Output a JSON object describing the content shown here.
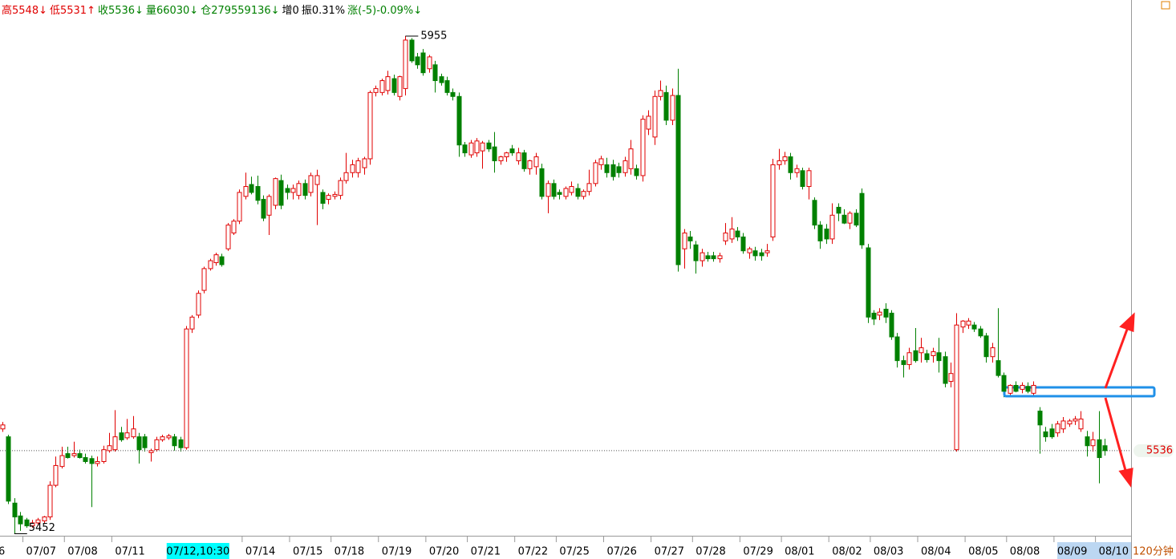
{
  "header": {
    "items": [
      {
        "text": "高5548↓",
        "color": "#e00000"
      },
      {
        "text": "低5531↑",
        "color": "#e00000"
      },
      {
        "text": "收5536↓",
        "color": "#008000"
      },
      {
        "text": "量66030↓",
        "color": "#008000"
      },
      {
        "text": "仓279559136↓",
        "color": "#008000"
      },
      {
        "text": "增0",
        "color": "#000000"
      },
      {
        "text": "振0.31%",
        "color": "#000000"
      },
      {
        "text": "涨(-5)-0.09%↓",
        "color": "#008000"
      }
    ]
  },
  "chart_data": {
    "type": "candlestick",
    "ylim": [
      5450,
      5991.5
    ],
    "up_color": "#e00000",
    "down_color": "#008000",
    "period": "120分钟",
    "last_price": 5536,
    "max_label": 5955,
    "min_label": 5452,
    "highlight": 33,
    "categories": [
      "6",
      null,
      null,
      null,
      "07/07",
      null,
      null,
      null,
      null,
      null,
      null,
      "07/08",
      null,
      null,
      null,
      null,
      null,
      null,
      null,
      "07/11",
      null,
      null,
      null,
      null,
      null,
      null,
      null,
      null,
      null,
      null,
      null,
      null,
      null,
      "07/12,10:30",
      null,
      null,
      null,
      null,
      null,
      null,
      null,
      "07/14",
      null,
      null,
      null,
      null,
      null,
      null,
      null,
      "07/15",
      null,
      null,
      null,
      null,
      null,
      null,
      "07/18",
      null,
      null,
      null,
      null,
      null,
      null,
      null,
      "07/19",
      null,
      null,
      null,
      null,
      null,
      null,
      null,
      "07/20",
      null,
      null,
      null,
      null,
      null,
      null,
      "07/21",
      null,
      null,
      null,
      null,
      null,
      null,
      null,
      "07/22",
      null,
      null,
      null,
      null,
      null,
      null,
      "07/25",
      null,
      null,
      null,
      null,
      null,
      null,
      null,
      "07/26",
      null,
      null,
      null,
      null,
      null,
      null,
      null,
      "07/27",
      null,
      null,
      null,
      null,
      null,
      null,
      "07/28",
      null,
      null,
      null,
      null,
      null,
      null,
      null,
      "07/29",
      null,
      null,
      null,
      null,
      null,
      null,
      "08/01",
      null,
      null,
      null,
      null,
      null,
      null,
      null,
      "08/02",
      null,
      null,
      null,
      null,
      null,
      null,
      "08/03",
      null,
      null,
      null,
      null,
      null,
      null,
      null,
      "08/04",
      null,
      null,
      null,
      null,
      null,
      null,
      null,
      "08/05",
      null,
      null,
      null,
      null,
      null,
      null,
      "08/08",
      null,
      null,
      null,
      null,
      null,
      null,
      null,
      "08/09",
      null,
      null,
      null,
      null,
      null,
      null,
      "08/10",
      null
    ],
    "candles": [
      [
        5558,
        5565,
        5555,
        5562
      ],
      [
        5550,
        5552,
        5482,
        5485
      ],
      [
        5483,
        5488,
        5452,
        5469
      ],
      [
        5470,
        5474,
        5455,
        5462
      ],
      [
        5466,
        5468,
        5458,
        5460
      ],
      [
        5460,
        5466,
        5458,
        5463
      ],
      [
        5463,
        5468,
        5460,
        5466
      ],
      [
        5465,
        5470,
        5462,
        5469
      ],
      [
        5469,
        5505,
        5466,
        5501
      ],
      [
        5501,
        5530,
        5499,
        5521
      ],
      [
        5520,
        5540,
        5518,
        5531
      ],
      [
        5533,
        5540,
        5528,
        5529
      ],
      [
        5531,
        5545,
        5529,
        5533
      ],
      [
        5533,
        5537,
        5528,
        5529
      ],
      [
        5529,
        5533,
        5523,
        5525
      ],
      [
        5528,
        5531,
        5479,
        5523
      ],
      [
        5523,
        5530,
        5520,
        5525
      ],
      [
        5525,
        5541,
        5523,
        5537
      ],
      [
        5536,
        5554,
        5534,
        5541
      ],
      [
        5537,
        5577,
        5535,
        5550
      ],
      [
        5554,
        5560,
        5545,
        5547
      ],
      [
        5549,
        5568,
        5547,
        5554
      ],
      [
        5550,
        5571,
        5548,
        5558
      ],
      [
        5550,
        5554,
        5523,
        5537
      ],
      [
        5550,
        5553,
        5535,
        5539
      ],
      [
        5534,
        5538,
        5525,
        5536
      ],
      [
        5537,
        5550,
        5535,
        5547
      ],
      [
        5547,
        5552,
        5545,
        5550
      ],
      [
        5549,
        5553,
        5547,
        5551
      ],
      [
        5550,
        5553,
        5536,
        5541
      ],
      [
        5547,
        5550,
        5535,
        5539
      ],
      [
        5539,
        5662,
        5537,
        5659
      ],
      [
        5659,
        5673,
        5655,
        5671
      ],
      [
        5673,
        5698,
        5670,
        5695
      ],
      [
        5698,
        5722,
        5695,
        5720
      ],
      [
        5720,
        5730,
        5718,
        5728
      ],
      [
        5726,
        5736,
        5723,
        5734
      ],
      [
        5732,
        5735,
        5722,
        5724
      ],
      [
        5740,
        5766,
        5738,
        5764
      ],
      [
        5756,
        5770,
        5754,
        5768
      ],
      [
        5768,
        5800,
        5765,
        5797
      ],
      [
        5793,
        5817,
        5790,
        5803
      ],
      [
        5805,
        5813,
        5795,
        5797
      ],
      [
        5803,
        5814,
        5785,
        5789
      ],
      [
        5790,
        5794,
        5768,
        5771
      ],
      [
        5774,
        5795,
        5754,
        5793
      ],
      [
        5784,
        5812,
        5780,
        5811
      ],
      [
        5809,
        5815,
        5780,
        5784
      ],
      [
        5801,
        5805,
        5790,
        5797
      ],
      [
        5797,
        5805,
        5790,
        5801
      ],
      [
        5794,
        5809,
        5790,
        5806
      ],
      [
        5806,
        5810,
        5790,
        5794
      ],
      [
        5797,
        5817,
        5793,
        5814
      ],
      [
        5805,
        5820,
        5764,
        5814
      ],
      [
        5797,
        5800,
        5780,
        5786
      ],
      [
        5790,
        5796,
        5785,
        5794
      ],
      [
        5793,
        5798,
        5790,
        5795
      ],
      [
        5794,
        5812,
        5790,
        5809
      ],
      [
        5809,
        5837,
        5806,
        5817
      ],
      [
        5817,
        5830,
        5812,
        5825
      ],
      [
        5817,
        5832,
        5812,
        5829
      ],
      [
        5822,
        5833,
        5815,
        5831
      ],
      [
        5831,
        5900,
        5825,
        5898
      ],
      [
        5898,
        5905,
        5894,
        5902
      ],
      [
        5898,
        5912,
        5895,
        5910
      ],
      [
        5900,
        5920,
        5896,
        5914
      ],
      [
        5912,
        5916,
        5895,
        5898
      ],
      [
        5894,
        5915,
        5890,
        5914
      ],
      [
        5902,
        5955,
        5895,
        5951
      ],
      [
        5951,
        5953,
        5928,
        5930
      ],
      [
        5934,
        5938,
        5922,
        5926
      ],
      [
        5938,
        5942,
        5915,
        5918
      ],
      [
        5922,
        5936,
        5918,
        5934
      ],
      [
        5926,
        5930,
        5898,
        5910
      ],
      [
        5914,
        5917,
        5905,
        5908
      ],
      [
        5910,
        5914,
        5895,
        5898
      ],
      [
        5898,
        5902,
        5890,
        5894
      ],
      [
        5894,
        5898,
        5833,
        5845
      ],
      [
        5845,
        5848,
        5833,
        5837
      ],
      [
        5835,
        5850,
        5832,
        5847
      ],
      [
        5837,
        5852,
        5833,
        5849
      ],
      [
        5839,
        5849,
        5821,
        5847
      ],
      [
        5847,
        5850,
        5838,
        5841
      ],
      [
        5843,
        5858,
        5817,
        5829
      ],
      [
        5829,
        5834,
        5825,
        5833
      ],
      [
        5833,
        5838,
        5828,
        5837
      ],
      [
        5841,
        5845,
        5834,
        5837
      ],
      [
        5829,
        5842,
        5825,
        5837
      ],
      [
        5837,
        5840,
        5818,
        5821
      ],
      [
        5821,
        5830,
        5815,
        5829
      ],
      [
        5823,
        5837,
        5815,
        5833
      ],
      [
        5821,
        5826,
        5790,
        5793
      ],
      [
        5793,
        5809,
        5776,
        5806
      ],
      [
        5806,
        5810,
        5790,
        5793
      ],
      [
        5797,
        5800,
        5790,
        5795
      ],
      [
        5793,
        5803,
        5790,
        5801
      ],
      [
        5797,
        5808,
        5794,
        5803
      ],
      [
        5801,
        5806,
        5790,
        5793
      ],
      [
        5793,
        5800,
        5790,
        5798
      ],
      [
        5798,
        5820,
        5794,
        5806
      ],
      [
        5806,
        5830,
        5803,
        5827
      ],
      [
        5825,
        5834,
        5820,
        5831
      ],
      [
        5825,
        5832,
        5812,
        5817
      ],
      [
        5825,
        5830,
        5809,
        5813
      ],
      [
        5823,
        5827,
        5812,
        5817
      ],
      [
        5817,
        5833,
        5813,
        5829
      ],
      [
        5821,
        5850,
        5815,
        5841
      ],
      [
        5821,
        5825,
        5810,
        5814
      ],
      [
        5814,
        5875,
        5808,
        5871
      ],
      [
        5861,
        5880,
        5855,
        5874
      ],
      [
        5853,
        5900,
        5845,
        5894
      ],
      [
        5894,
        5910,
        5890,
        5900
      ],
      [
        5898,
        5905,
        5865,
        5870
      ],
      [
        5870,
        5902,
        5865,
        5895
      ],
      [
        5895,
        5922,
        5717,
        5724
      ],
      [
        5740,
        5760,
        5720,
        5756
      ],
      [
        5752,
        5758,
        5740,
        5748
      ],
      [
        5744,
        5748,
        5715,
        5728
      ],
      [
        5728,
        5740,
        5722,
        5736
      ],
      [
        5733,
        5737,
        5727,
        5730
      ],
      [
        5733,
        5737,
        5727,
        5730
      ],
      [
        5730,
        5736,
        5726,
        5733
      ],
      [
        5748,
        5766,
        5744,
        5756
      ],
      [
        5750,
        5772,
        5746,
        5760
      ],
      [
        5758,
        5762,
        5748,
        5752
      ],
      [
        5752,
        5756,
        5735,
        5738
      ],
      [
        5736,
        5742,
        5730,
        5740
      ],
      [
        5738,
        5742,
        5728,
        5733
      ],
      [
        5736,
        5740,
        5728,
        5733
      ],
      [
        5736,
        5745,
        5732,
        5738
      ],
      [
        5752,
        5831,
        5748,
        5825
      ],
      [
        5825,
        5841,
        5820,
        5829
      ],
      [
        5829,
        5838,
        5825,
        5833
      ],
      [
        5833,
        5837,
        5810,
        5817
      ],
      [
        5817,
        5825,
        5812,
        5821
      ],
      [
        5819,
        5822,
        5800,
        5803
      ],
      [
        5803,
        5822,
        5790,
        5819
      ],
      [
        5789,
        5792,
        5760,
        5764
      ],
      [
        5764,
        5768,
        5740,
        5748
      ],
      [
        5760,
        5765,
        5745,
        5750
      ],
      [
        5750,
        5786,
        5745,
        5774
      ],
      [
        5782,
        5786,
        5768,
        5776
      ],
      [
        5774,
        5780,
        5765,
        5766
      ],
      [
        5766,
        5778,
        5760,
        5776
      ],
      [
        5776,
        5780,
        5762,
        5764
      ],
      [
        5796,
        5801,
        5740,
        5744
      ],
      [
        5741,
        5745,
        5665,
        5671
      ],
      [
        5675,
        5678,
        5663,
        5669
      ],
      [
        5673,
        5680,
        5668,
        5676
      ],
      [
        5679,
        5685,
        5665,
        5671
      ],
      [
        5675,
        5678,
        5648,
        5651
      ],
      [
        5651,
        5655,
        5620,
        5627
      ],
      [
        5627,
        5632,
        5610,
        5623
      ],
      [
        5623,
        5640,
        5618,
        5635
      ],
      [
        5637,
        5660,
        5625,
        5627
      ],
      [
        5635,
        5650,
        5625,
        5640
      ],
      [
        5634,
        5638,
        5625,
        5628
      ],
      [
        5632,
        5640,
        5625,
        5636
      ],
      [
        5635,
        5650,
        5615,
        5627
      ],
      [
        5631,
        5636,
        5600,
        5604
      ],
      [
        5606,
        5625,
        5600,
        5614
      ],
      [
        5537,
        5675,
        5535,
        5663
      ],
      [
        5661,
        5668,
        5655,
        5667
      ],
      [
        5663,
        5670,
        5659,
        5667
      ],
      [
        5663,
        5666,
        5656,
        5659
      ],
      [
        5659,
        5662,
        5650,
        5652
      ],
      [
        5652,
        5655,
        5625,
        5631
      ],
      [
        5631,
        5645,
        5625,
        5640
      ],
      [
        5627,
        5680,
        5610,
        5612
      ],
      [
        5612,
        5615,
        5590,
        5596
      ],
      [
        5594,
        5603,
        5590,
        5602
      ],
      [
        5602,
        5606,
        5595,
        5596
      ],
      [
        5598,
        5605,
        5594,
        5602
      ],
      [
        5601,
        5605,
        5594,
        5596
      ],
      [
        5594,
        5606,
        5592,
        5602
      ],
      [
        5576,
        5580,
        5533,
        5562
      ],
      [
        5555,
        5560,
        5545,
        5550
      ],
      [
        5558,
        5563,
        5548,
        5550
      ],
      [
        5554,
        5566,
        5550,
        5563
      ],
      [
        5558,
        5570,
        5554,
        5566
      ],
      [
        5563,
        5568,
        5560,
        5566
      ],
      [
        5566,
        5571,
        5562,
        5568
      ],
      [
        5558,
        5576,
        5555,
        5568
      ],
      [
        5550,
        5556,
        5530,
        5541
      ],
      [
        5541,
        5555,
        5535,
        5547
      ],
      [
        5547,
        5576,
        5503,
        5529
      ],
      [
        5541,
        5548,
        5531,
        5536
      ]
    ]
  }
}
